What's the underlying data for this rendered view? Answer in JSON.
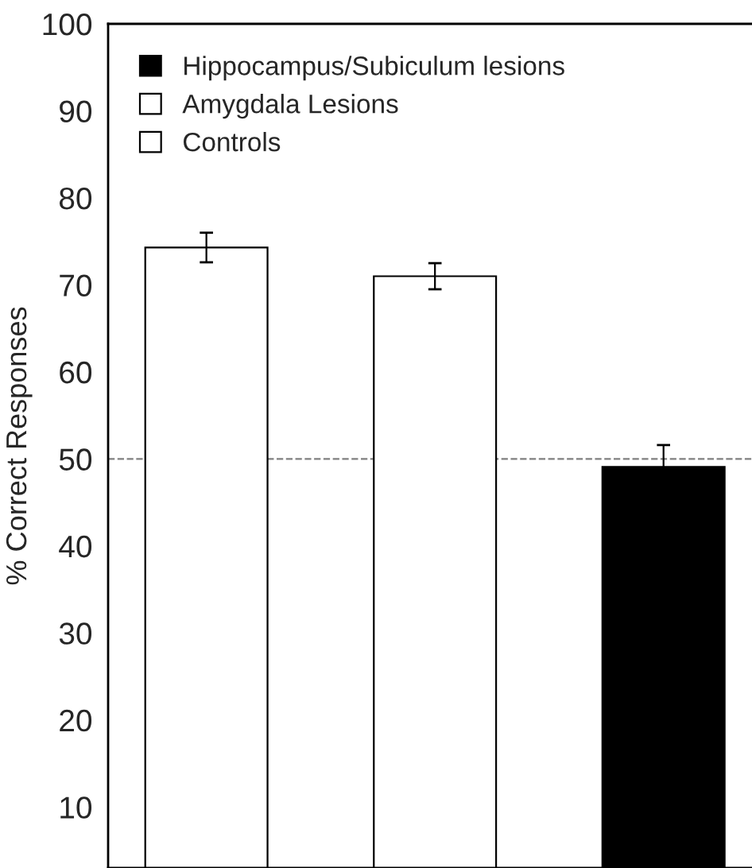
{
  "chart_data": {
    "type": "bar",
    "ylabel": "% Correct Responses",
    "categories": [
      null,
      null,
      null
    ],
    "series": [
      {
        "name": "Hippocampus/Subiculum lesions",
        "color": "#000000",
        "values": [
          null,
          null,
          49.1
        ],
        "errors": [
          null,
          null,
          2.5
        ]
      },
      {
        "name": "Amygdala Lesions",
        "color": "#ffffff",
        "values": [
          null,
          71.0,
          null
        ],
        "errors": [
          null,
          1.5,
          null
        ]
      },
      {
        "name": "Controls",
        "color": "#ffffff",
        "values": [
          74.3,
          null,
          null
        ],
        "errors": [
          1.7,
          null,
          null
        ]
      }
    ],
    "ylim": [
      3,
      100
    ],
    "yticks": [
      10,
      20,
      30,
      40,
      50,
      60,
      70,
      80,
      90,
      100
    ],
    "ref_lines": [
      {
        "axis": "y",
        "value": 50,
        "color": "#808080",
        "line_style": "dashed"
      }
    ],
    "legend": "top left",
    "grid": false
  }
}
